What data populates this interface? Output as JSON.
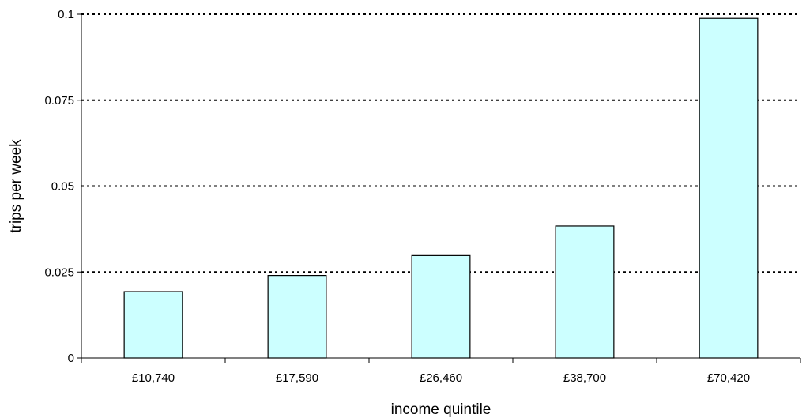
{
  "chart_data": {
    "type": "bar",
    "categories": [
      "£10,740",
      "£17,590",
      "£26,460",
      "£38,700",
      "£70,420"
    ],
    "values": [
      0.0193,
      0.024,
      0.0298,
      0.0384,
      0.0988
    ],
    "xlabel": "income quintile",
    "ylabel": "trips per week",
    "ylim": [
      0,
      0.1
    ],
    "yticks": [
      0,
      0.025,
      0.05,
      0.075,
      0.1
    ],
    "ytick_labels": [
      "0",
      "0.025",
      "0.05",
      "0.075",
      "0.1"
    ],
    "grid": "horizontal dotted",
    "bar_color": "#ccffff",
    "bar_edge_color": "#000000"
  }
}
